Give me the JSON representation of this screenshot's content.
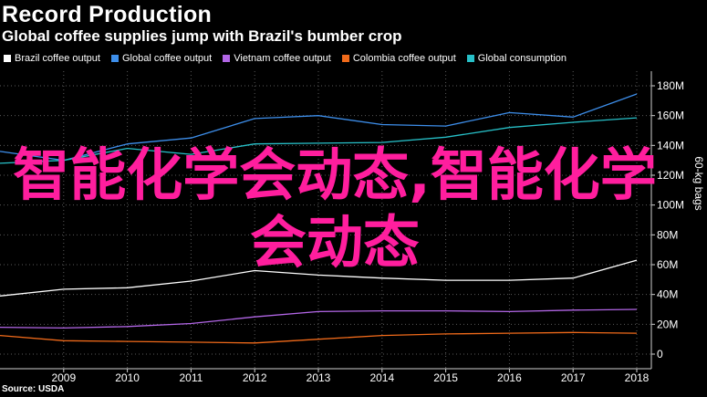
{
  "header": {
    "brand": "Record Production",
    "headline": "Global coffee supplies jump with Brazil's bumber crop"
  },
  "legend": [
    {
      "label": "Brazil coffee output",
      "color": "#ffffff"
    },
    {
      "label": "Global coffee output",
      "color": "#3d8eea"
    },
    {
      "label": "Vietnam coffee output",
      "color": "#b266e6"
    },
    {
      "label": "Colombia coffee output",
      "color": "#f06a1a"
    },
    {
      "label": "Global consumption",
      "color": "#27c0c8"
    }
  ],
  "source": "Source: USDA",
  "watermark": "智能化学会动态,智能化学会动态",
  "chart_data": {
    "type": "line",
    "x": [
      2008,
      2009,
      2010,
      2011,
      2012,
      2013,
      2014,
      2015,
      2016,
      2017,
      2018
    ],
    "xlim": [
      2008,
      2018
    ],
    "ylim": [
      0,
      180
    ],
    "ylabel": "60-kg bags",
    "yticks": [
      0,
      20,
      40,
      60,
      80,
      100,
      120,
      140,
      160,
      180
    ],
    "ytick_labels": [
      "0",
      "20M",
      "40M",
      "60M",
      "80M",
      "100M",
      "120M",
      "140M",
      "160M",
      "180M"
    ],
    "xtick_labels": [
      "2009",
      "2010",
      "2011",
      "2012",
      "2013",
      "2014",
      "2015",
      "2016",
      "2017",
      "2018"
    ],
    "series": [
      {
        "name": "Brazil coffee output",
        "color": "#ffffff",
        "values": [
          39,
          43.5,
          44.5,
          49,
          56,
          53,
          51,
          49.5,
          49.5,
          51,
          63
        ]
      },
      {
        "name": "Global coffee output",
        "color": "#3d8eea",
        "values": [
          136,
          130,
          141,
          145,
          158,
          160,
          154,
          153,
          162,
          159,
          174.5
        ]
      },
      {
        "name": "Vietnam coffee output",
        "color": "#b266e6",
        "values": [
          18,
          17.5,
          18.5,
          20.5,
          25,
          28.5,
          29,
          29,
          28.5,
          29.5,
          30
        ]
      },
      {
        "name": "Colombia coffee output",
        "color": "#f06a1a",
        "values": [
          12.5,
          9,
          8.5,
          8,
          7.5,
          10,
          12.5,
          13.5,
          14,
          14.5,
          14
        ]
      },
      {
        "name": "Global consumption",
        "color": "#27c0c8",
        "values": [
          128,
          130,
          138,
          134,
          141,
          141.5,
          142,
          145.5,
          152,
          155.5,
          158.5
        ]
      }
    ]
  }
}
